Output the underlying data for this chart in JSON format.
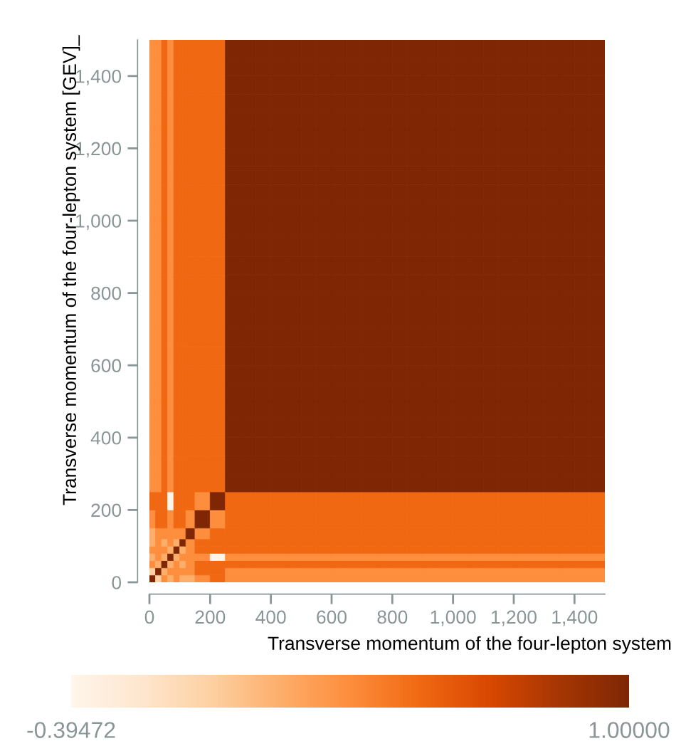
{
  "chart_data": {
    "type": "heatmap",
    "xlabel": "Transverse momentum of the four-lepton system",
    "ylabel": "Transverse momentum of the four-lepton system [GEV]_",
    "x": [
      10,
      30,
      50,
      70,
      90,
      110,
      135,
      175,
      225,
      275,
      325,
      375,
      425,
      475,
      525,
      575,
      625,
      675,
      725,
      775,
      825,
      875,
      925,
      975,
      1025,
      1075,
      1125,
      1175,
      1225,
      1275,
      1325,
      1375,
      1425,
      1475
    ],
    "y": [
      1475,
      1425,
      1375,
      1325,
      1275,
      1225,
      1175,
      1125,
      1075,
      1025,
      975,
      925,
      875,
      825,
      775,
      725,
      675,
      625,
      575,
      525,
      475,
      425,
      375,
      325,
      275,
      225,
      175,
      135,
      110,
      90,
      70,
      50,
      30,
      10
    ],
    "cells": [
      [
        0.3,
        0.3,
        0.48,
        0.3,
        0.48,
        0.48,
        0.48,
        0.48,
        0.48,
        1,
        1,
        1,
        1,
        1,
        1,
        1,
        1,
        1,
        1,
        1,
        1,
        1,
        1,
        1,
        1,
        1,
        1,
        1,
        1,
        1,
        1,
        1,
        1,
        1
      ],
      [
        0.3,
        0.3,
        0.48,
        0.3,
        0.48,
        0.48,
        0.48,
        0.48,
        0.48,
        1,
        1,
        1,
        1,
        1,
        1,
        1,
        1,
        1,
        1,
        1,
        1,
        1,
        1,
        1,
        1,
        1,
        1,
        1,
        1,
        1,
        1,
        1,
        1,
        1
      ],
      [
        0.3,
        0.3,
        0.48,
        0.3,
        0.48,
        0.48,
        0.48,
        0.48,
        0.48,
        1,
        1,
        1,
        1,
        1,
        1,
        1,
        1,
        1,
        1,
        1,
        1,
        1,
        1,
        1,
        1,
        1,
        1,
        1,
        1,
        1,
        1,
        1,
        1,
        1
      ],
      [
        0.3,
        0.3,
        0.48,
        0.3,
        0.48,
        0.48,
        0.48,
        0.48,
        0.48,
        1,
        1,
        1,
        1,
        1,
        1,
        1,
        1,
        1,
        1,
        1,
        1,
        1,
        1,
        1,
        1,
        1,
        1,
        1,
        1,
        1,
        1,
        1,
        1,
        1
      ],
      [
        0.3,
        0.3,
        0.48,
        0.3,
        0.48,
        0.48,
        0.48,
        0.48,
        0.48,
        1,
        1,
        1,
        1,
        1,
        1,
        1,
        1,
        1,
        1,
        1,
        1,
        1,
        1,
        1,
        1,
        1,
        1,
        1,
        1,
        1,
        1,
        1,
        1,
        1
      ],
      [
        0.3,
        0.3,
        0.48,
        0.3,
        0.48,
        0.48,
        0.48,
        0.48,
        0.48,
        1,
        1,
        1,
        1,
        1,
        1,
        1,
        1,
        1,
        1,
        1,
        1,
        1,
        1,
        1,
        1,
        1,
        1,
        1,
        1,
        1,
        1,
        1,
        1,
        1
      ],
      [
        0.3,
        0.3,
        0.48,
        0.3,
        0.48,
        0.48,
        0.48,
        0.48,
        0.48,
        1,
        1,
        1,
        1,
        1,
        1,
        1,
        1,
        1,
        1,
        1,
        1,
        1,
        1,
        1,
        1,
        1,
        1,
        1,
        1,
        1,
        1,
        1,
        1,
        1
      ],
      [
        0.3,
        0.3,
        0.48,
        0.3,
        0.48,
        0.48,
        0.48,
        0.48,
        0.48,
        1,
        1,
        1,
        1,
        1,
        1,
        1,
        1,
        1,
        1,
        1,
        1,
        1,
        1,
        1,
        1,
        1,
        1,
        1,
        1,
        1,
        1,
        1,
        1,
        1
      ],
      [
        0.3,
        0.3,
        0.48,
        0.3,
        0.48,
        0.48,
        0.48,
        0.48,
        0.48,
        1,
        1,
        1,
        1,
        1,
        1,
        1,
        1,
        1,
        1,
        1,
        1,
        1,
        1,
        1,
        1,
        1,
        1,
        1,
        1,
        1,
        1,
        1,
        1,
        1
      ],
      [
        0.3,
        0.3,
        0.48,
        0.3,
        0.48,
        0.48,
        0.48,
        0.48,
        0.48,
        1,
        1,
        1,
        1,
        1,
        1,
        1,
        1,
        1,
        1,
        1,
        1,
        1,
        1,
        1,
        1,
        1,
        1,
        1,
        1,
        1,
        1,
        1,
        1,
        1
      ],
      [
        0.3,
        0.3,
        0.48,
        0.3,
        0.48,
        0.48,
        0.48,
        0.48,
        0.48,
        1,
        1,
        1,
        1,
        1,
        1,
        1,
        1,
        1,
        1,
        1,
        1,
        1,
        1,
        1,
        1,
        1,
        1,
        1,
        1,
        1,
        1,
        1,
        1,
        1
      ],
      [
        0.3,
        0.3,
        0.48,
        0.3,
        0.48,
        0.48,
        0.48,
        0.48,
        0.48,
        1,
        1,
        1,
        1,
        1,
        1,
        1,
        1,
        1,
        1,
        1,
        1,
        1,
        1,
        1,
        1,
        1,
        1,
        1,
        1,
        1,
        1,
        1,
        1,
        1
      ],
      [
        0.3,
        0.3,
        0.48,
        0.3,
        0.48,
        0.48,
        0.48,
        0.48,
        0.48,
        1,
        1,
        1,
        1,
        1,
        1,
        1,
        1,
        1,
        1,
        1,
        1,
        1,
        1,
        1,
        1,
        1,
        1,
        1,
        1,
        1,
        1,
        1,
        1,
        1
      ],
      [
        0.3,
        0.3,
        0.48,
        0.3,
        0.48,
        0.48,
        0.48,
        0.48,
        0.48,
        1,
        1,
        1,
        1,
        1,
        1,
        1,
        1,
        1,
        1,
        1,
        1,
        1,
        1,
        1,
        1,
        1,
        1,
        1,
        1,
        1,
        1,
        1,
        1,
        1
      ],
      [
        0.3,
        0.3,
        0.48,
        0.3,
        0.48,
        0.48,
        0.48,
        0.48,
        0.48,
        1,
        1,
        1,
        1,
        1,
        1,
        1,
        1,
        1,
        1,
        1,
        1,
        1,
        1,
        1,
        1,
        1,
        1,
        1,
        1,
        1,
        1,
        1,
        1,
        1
      ],
      [
        0.3,
        0.3,
        0.48,
        0.3,
        0.48,
        0.48,
        0.48,
        0.48,
        0.48,
        1,
        1,
        1,
        1,
        1,
        1,
        1,
        1,
        1,
        1,
        1,
        1,
        1,
        1,
        1,
        1,
        1,
        1,
        1,
        1,
        1,
        1,
        1,
        1,
        1
      ],
      [
        0.3,
        0.3,
        0.48,
        0.3,
        0.48,
        0.48,
        0.48,
        0.48,
        0.48,
        1,
        1,
        1,
        1,
        1,
        1,
        1,
        1,
        1,
        1,
        1,
        1,
        1,
        1,
        1,
        1,
        1,
        1,
        1,
        1,
        1,
        1,
        1,
        1,
        1
      ],
      [
        0.3,
        0.3,
        0.48,
        0.3,
        0.48,
        0.48,
        0.48,
        0.48,
        0.48,
        1,
        1,
        1,
        1,
        1,
        1,
        1,
        1,
        1,
        1,
        1,
        1,
        1,
        1,
        1,
        1,
        1,
        1,
        1,
        1,
        1,
        1,
        1,
        1,
        1
      ],
      [
        0.3,
        0.3,
        0.48,
        0.3,
        0.48,
        0.48,
        0.48,
        0.48,
        0.48,
        1,
        1,
        1,
        1,
        1,
        1,
        1,
        1,
        1,
        1,
        1,
        1,
        1,
        1,
        1,
        1,
        1,
        1,
        1,
        1,
        1,
        1,
        1,
        1,
        1
      ],
      [
        0.3,
        0.3,
        0.48,
        0.3,
        0.48,
        0.48,
        0.48,
        0.48,
        0.48,
        1,
        1,
        1,
        1,
        1,
        1,
        1,
        1,
        1,
        1,
        1,
        1,
        1,
        1,
        1,
        1,
        1,
        1,
        1,
        1,
        1,
        1,
        1,
        1,
        1
      ],
      [
        0.3,
        0.3,
        0.48,
        0.3,
        0.48,
        0.48,
        0.48,
        0.48,
        0.48,
        1,
        1,
        1,
        1,
        1,
        1,
        1,
        1,
        1,
        1,
        1,
        1,
        1,
        1,
        1,
        1,
        1,
        1,
        1,
        1,
        1,
        1,
        1,
        1,
        1
      ],
      [
        0.3,
        0.3,
        0.48,
        0.3,
        0.48,
        0.48,
        0.48,
        0.48,
        0.48,
        1,
        1,
        1,
        1,
        1,
        1,
        1,
        1,
        1,
        1,
        1,
        1,
        1,
        1,
        1,
        1,
        1,
        1,
        1,
        1,
        1,
        1,
        1,
        1,
        1
      ],
      [
        0.3,
        0.3,
        0.48,
        0.3,
        0.48,
        0.48,
        0.48,
        0.48,
        0.48,
        1,
        1,
        1,
        1,
        1,
        1,
        1,
        1,
        1,
        1,
        1,
        1,
        1,
        1,
        1,
        1,
        1,
        1,
        1,
        1,
        1,
        1,
        1,
        1,
        1
      ],
      [
        0.3,
        0.3,
        0.48,
        0.3,
        0.48,
        0.48,
        0.48,
        0.48,
        0.48,
        1,
        1,
        1,
        1,
        1,
        1,
        1,
        1,
        1,
        1,
        1,
        1,
        1,
        1,
        1,
        1,
        1,
        1,
        1,
        1,
        1,
        1,
        1,
        1,
        1
      ],
      [
        0.3,
        0.3,
        0.48,
        0.3,
        0.48,
        0.48,
        0.48,
        0.48,
        0.48,
        1,
        1,
        1,
        1,
        1,
        1,
        1,
        1,
        1,
        1,
        1,
        1,
        1,
        1,
        1,
        1,
        1,
        1,
        1,
        1,
        1,
        1,
        1,
        1,
        1
      ],
      [
        0.48,
        0.48,
        0.48,
        -0.39472,
        0.48,
        0.48,
        0.48,
        0.3,
        1,
        0.48,
        0.48,
        0.48,
        0.48,
        0.48,
        0.48,
        0.48,
        0.48,
        0.48,
        0.48,
        0.48,
        0.48,
        0.48,
        0.48,
        0.48,
        0.48,
        0.48,
        0.48,
        0.48,
        0.48,
        0.48,
        0.48,
        0.48,
        0.48,
        0.48
      ],
      [
        0.3,
        0.48,
        0.48,
        0.3,
        0.48,
        0.48,
        0.3,
        1,
        0.3,
        0.48,
        0.48,
        0.48,
        0.48,
        0.48,
        0.48,
        0.48,
        0.48,
        0.48,
        0.48,
        0.48,
        0.48,
        0.48,
        0.48,
        0.48,
        0.48,
        0.48,
        0.48,
        0.48,
        0.48,
        0.48,
        0.48,
        0.48,
        0.48,
        0.48
      ],
      [
        0.13,
        0.3,
        0.3,
        0.3,
        0.3,
        0.3,
        1,
        0.3,
        0.48,
        0.48,
        0.48,
        0.48,
        0.48,
        0.48,
        0.48,
        0.48,
        0.48,
        0.48,
        0.48,
        0.48,
        0.48,
        0.48,
        0.48,
        0.48,
        0.48,
        0.48,
        0.48,
        0.48,
        0.48,
        0.48,
        0.48,
        0.48,
        0.48,
        0.48
      ],
      [
        0.13,
        0.3,
        0.13,
        0.3,
        0.13,
        1,
        0.3,
        0.48,
        0.48,
        0.48,
        0.48,
        0.48,
        0.48,
        0.48,
        0.48,
        0.48,
        0.48,
        0.48,
        0.48,
        0.48,
        0.48,
        0.48,
        0.48,
        0.48,
        0.48,
        0.48,
        0.48,
        0.48,
        0.48,
        0.48,
        0.48,
        0.48,
        0.48,
        0.48
      ],
      [
        0.3,
        0.3,
        0.3,
        0.13,
        1,
        0.13,
        0.3,
        0.48,
        0.48,
        0.48,
        0.48,
        0.48,
        0.48,
        0.48,
        0.48,
        0.48,
        0.48,
        0.48,
        0.48,
        0.48,
        0.48,
        0.48,
        0.48,
        0.48,
        0.48,
        0.48,
        0.48,
        0.48,
        0.48,
        0.48,
        0.48,
        0.48,
        0.48,
        0.48
      ],
      [
        0.13,
        0.3,
        0.13,
        1,
        0.13,
        0.3,
        0.3,
        0.3,
        -0.39472,
        0.3,
        0.3,
        0.3,
        0.3,
        0.3,
        0.3,
        0.3,
        0.3,
        0.3,
        0.3,
        0.3,
        0.3,
        0.3,
        0.3,
        0.3,
        0.3,
        0.3,
        0.3,
        0.3,
        0.3,
        0.3,
        0.3,
        0.3,
        0.3,
        0.3
      ],
      [
        0.3,
        0.13,
        1,
        0.13,
        0.3,
        0.13,
        0.3,
        0.48,
        0.48,
        0.48,
        0.48,
        0.48,
        0.48,
        0.48,
        0.48,
        0.48,
        0.48,
        0.48,
        0.48,
        0.48,
        0.48,
        0.48,
        0.48,
        0.48,
        0.48,
        0.48,
        0.48,
        0.48,
        0.48,
        0.48,
        0.48,
        0.48,
        0.48,
        0.48
      ],
      [
        -0.05,
        1,
        0.13,
        0.3,
        0.3,
        0.3,
        0.3,
        0.48,
        0.48,
        0.3,
        0.3,
        0.3,
        0.3,
        0.3,
        0.3,
        0.3,
        0.3,
        0.3,
        0.3,
        0.3,
        0.3,
        0.3,
        0.3,
        0.3,
        0.3,
        0.3,
        0.3,
        0.3,
        0.3,
        0.3,
        0.3,
        0.3,
        0.3,
        0.3
      ],
      [
        1,
        -0.05,
        0.3,
        0.13,
        0.3,
        0.13,
        0.13,
        0.3,
        0.48,
        0.3,
        0.3,
        0.3,
        0.3,
        0.3,
        0.3,
        0.3,
        0.3,
        0.3,
        0.3,
        0.3,
        0.3,
        0.3,
        0.3,
        0.3,
        0.3,
        0.3,
        0.3,
        0.3,
        0.3,
        0.3,
        0.3,
        0.3,
        0.3,
        0.3
      ]
    ],
    "clim": [
      -0.39472,
      1.0
    ],
    "cticks": [
      {
        "value": -0.39472,
        "label": "-0.39472"
      },
      {
        "value": 1.0,
        "label": "1.00000"
      }
    ],
    "xlim": [
      0,
      1500
    ],
    "ylim": [
      0,
      1500
    ],
    "xticks": [
      0,
      200,
      400,
      600,
      800,
      {
        "value": 1000,
        "label": "1,000"
      },
      {
        "value": 1200,
        "label": "1,200"
      },
      {
        "value": 1400,
        "label": "1,400"
      }
    ],
    "yticks": [
      0,
      200,
      400,
      600,
      800,
      {
        "value": 1000,
        "label": "1,000"
      },
      {
        "value": 1200,
        "label": "1,200"
      },
      {
        "value": 1400,
        "label": "1,400"
      }
    ]
  }
}
